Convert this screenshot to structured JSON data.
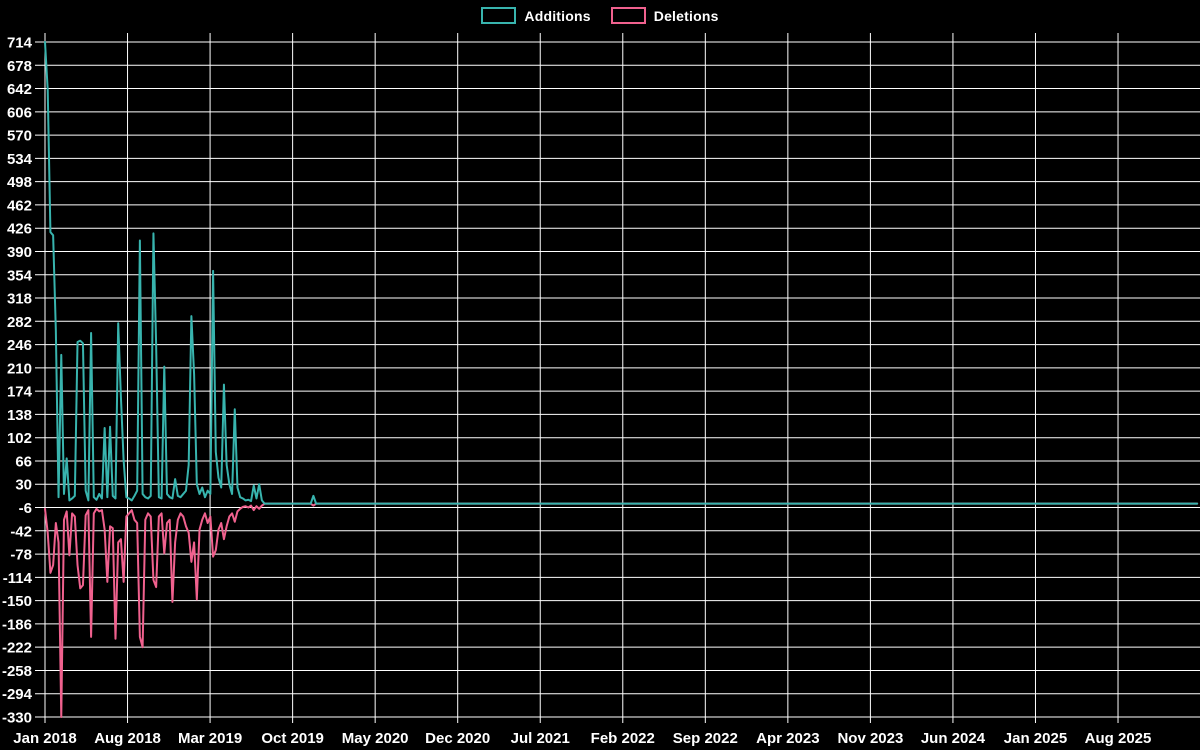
{
  "page": {
    "background": "#000000",
    "grid_color": "#ffffff",
    "text_color": "#ffffff"
  },
  "chart_data": {
    "type": "line",
    "title": "",
    "xlabel": "",
    "ylabel": "",
    "legend_position": "top-center",
    "grid": true,
    "x_axis": {
      "unit": "week",
      "first_tick": "Jan 2018",
      "last_tick": "Aug 2025",
      "tick_interval_months": 7,
      "tick_labels": [
        "Jan 2018",
        "Aug 2018",
        "Mar 2019",
        "Oct 2019",
        "May 2020",
        "Dec 2020",
        "Jul 2021",
        "Feb 2022",
        "Sep 2022",
        "Apr 2023",
        "Nov 2023",
        "Jun 2024",
        "Jan 2025",
        "Aug 2025"
      ]
    },
    "y_axis": {
      "min": -330,
      "max": 714,
      "tick_step": 36,
      "tick_labels": [
        714,
        678,
        642,
        606,
        570,
        534,
        498,
        462,
        426,
        390,
        354,
        318,
        282,
        246,
        210,
        174,
        138,
        102,
        66,
        30,
        -6,
        -42,
        -78,
        -114,
        -150,
        -186,
        -222,
        -258,
        -294,
        -330
      ]
    },
    "total_weeks": 426,
    "series": [
      {
        "name": "Additions",
        "color": "#38b4ae",
        "default_value": 0,
        "sparse_points": [
          [
            0,
            714
          ],
          [
            1,
            640
          ],
          [
            2,
            420
          ],
          [
            3,
            415
          ],
          [
            4,
            268
          ],
          [
            5,
            10
          ],
          [
            6,
            230
          ],
          [
            7,
            15
          ],
          [
            8,
            70
          ],
          [
            9,
            5
          ],
          [
            10,
            8
          ],
          [
            11,
            12
          ],
          [
            12,
            250
          ],
          [
            13,
            252
          ],
          [
            14,
            248
          ],
          [
            15,
            20
          ],
          [
            16,
            5
          ],
          [
            17,
            264
          ],
          [
            18,
            10
          ],
          [
            19,
            6
          ],
          [
            20,
            15
          ],
          [
            21,
            8
          ],
          [
            22,
            117
          ],
          [
            23,
            10
          ],
          [
            24,
            119
          ],
          [
            25,
            12
          ],
          [
            26,
            8
          ],
          [
            27,
            279
          ],
          [
            28,
            165
          ],
          [
            29,
            67
          ],
          [
            30,
            10
          ],
          [
            31,
            8
          ],
          [
            32,
            5
          ],
          [
            33,
            12
          ],
          [
            34,
            20
          ],
          [
            35,
            407
          ],
          [
            36,
            15
          ],
          [
            37,
            10
          ],
          [
            38,
            8
          ],
          [
            39,
            12
          ],
          [
            40,
            418
          ],
          [
            41,
            245
          ],
          [
            42,
            10
          ],
          [
            43,
            8
          ],
          [
            44,
            212
          ],
          [
            45,
            15
          ],
          [
            46,
            10
          ],
          [
            47,
            8
          ],
          [
            48,
            38
          ],
          [
            49,
            12
          ],
          [
            50,
            10
          ],
          [
            51,
            15
          ],
          [
            52,
            20
          ],
          [
            53,
            60
          ],
          [
            54,
            290
          ],
          [
            55,
            200
          ],
          [
            56,
            30
          ],
          [
            57,
            15
          ],
          [
            58,
            25
          ],
          [
            59,
            10
          ],
          [
            60,
            20
          ],
          [
            61,
            15
          ],
          [
            62,
            360
          ],
          [
            63,
            80
          ],
          [
            64,
            40
          ],
          [
            65,
            25
          ],
          [
            66,
            184
          ],
          [
            67,
            60
          ],
          [
            68,
            30
          ],
          [
            69,
            15
          ],
          [
            70,
            146
          ],
          [
            71,
            25
          ],
          [
            72,
            10
          ],
          [
            73,
            8
          ],
          [
            74,
            5
          ],
          [
            75,
            6
          ],
          [
            76,
            4
          ],
          [
            77,
            28
          ],
          [
            78,
            8
          ],
          [
            79,
            30
          ],
          [
            80,
            5
          ],
          [
            99,
            12
          ]
        ]
      },
      {
        "name": "Deletions",
        "color": "#f0618e",
        "default_value": 0,
        "sparse_points": [
          [
            0,
            -8
          ],
          [
            1,
            -45
          ],
          [
            2,
            -107
          ],
          [
            3,
            -95
          ],
          [
            4,
            -30
          ],
          [
            5,
            -60
          ],
          [
            6,
            -330
          ],
          [
            7,
            -25
          ],
          [
            8,
            -12
          ],
          [
            9,
            -80
          ],
          [
            10,
            -15
          ],
          [
            11,
            -20
          ],
          [
            12,
            -95
          ],
          [
            13,
            -131
          ],
          [
            14,
            -126
          ],
          [
            15,
            -18
          ],
          [
            16,
            -10
          ],
          [
            17,
            -206
          ],
          [
            18,
            -15
          ],
          [
            19,
            -8
          ],
          [
            20,
            -12
          ],
          [
            21,
            -10
          ],
          [
            22,
            -40
          ],
          [
            23,
            -121
          ],
          [
            24,
            -35
          ],
          [
            25,
            -38
          ],
          [
            26,
            -209
          ],
          [
            27,
            -60
          ],
          [
            28,
            -55
          ],
          [
            29,
            -121
          ],
          [
            30,
            -20
          ],
          [
            31,
            -15
          ],
          [
            32,
            -10
          ],
          [
            33,
            -25
          ],
          [
            34,
            -30
          ],
          [
            35,
            -206
          ],
          [
            36,
            -222
          ],
          [
            37,
            -25
          ],
          [
            38,
            -15
          ],
          [
            39,
            -20
          ],
          [
            40,
            -118
          ],
          [
            41,
            -129
          ],
          [
            42,
            -20
          ],
          [
            43,
            -15
          ],
          [
            44,
            -77
          ],
          [
            45,
            -30
          ],
          [
            46,
            -25
          ],
          [
            47,
            -152
          ],
          [
            48,
            -60
          ],
          [
            49,
            -25
          ],
          [
            50,
            -15
          ],
          [
            51,
            -20
          ],
          [
            52,
            -35
          ],
          [
            53,
            -45
          ],
          [
            54,
            -90
          ],
          [
            55,
            -60
          ],
          [
            56,
            -148
          ],
          [
            57,
            -40
          ],
          [
            58,
            -25
          ],
          [
            59,
            -15
          ],
          [
            60,
            -30
          ],
          [
            61,
            -20
          ],
          [
            62,
            -82
          ],
          [
            63,
            -72
          ],
          [
            64,
            -40
          ],
          [
            65,
            -30
          ],
          [
            66,
            -55
          ],
          [
            67,
            -35
          ],
          [
            68,
            -20
          ],
          [
            69,
            -15
          ],
          [
            70,
            -28
          ],
          [
            71,
            -12
          ],
          [
            72,
            -8
          ],
          [
            73,
            -5
          ],
          [
            74,
            -4
          ],
          [
            75,
            -6
          ],
          [
            76,
            -3
          ],
          [
            77,
            -10
          ],
          [
            78,
            -4
          ],
          [
            79,
            -8
          ],
          [
            80,
            -3
          ],
          [
            99,
            -3
          ]
        ]
      }
    ]
  }
}
